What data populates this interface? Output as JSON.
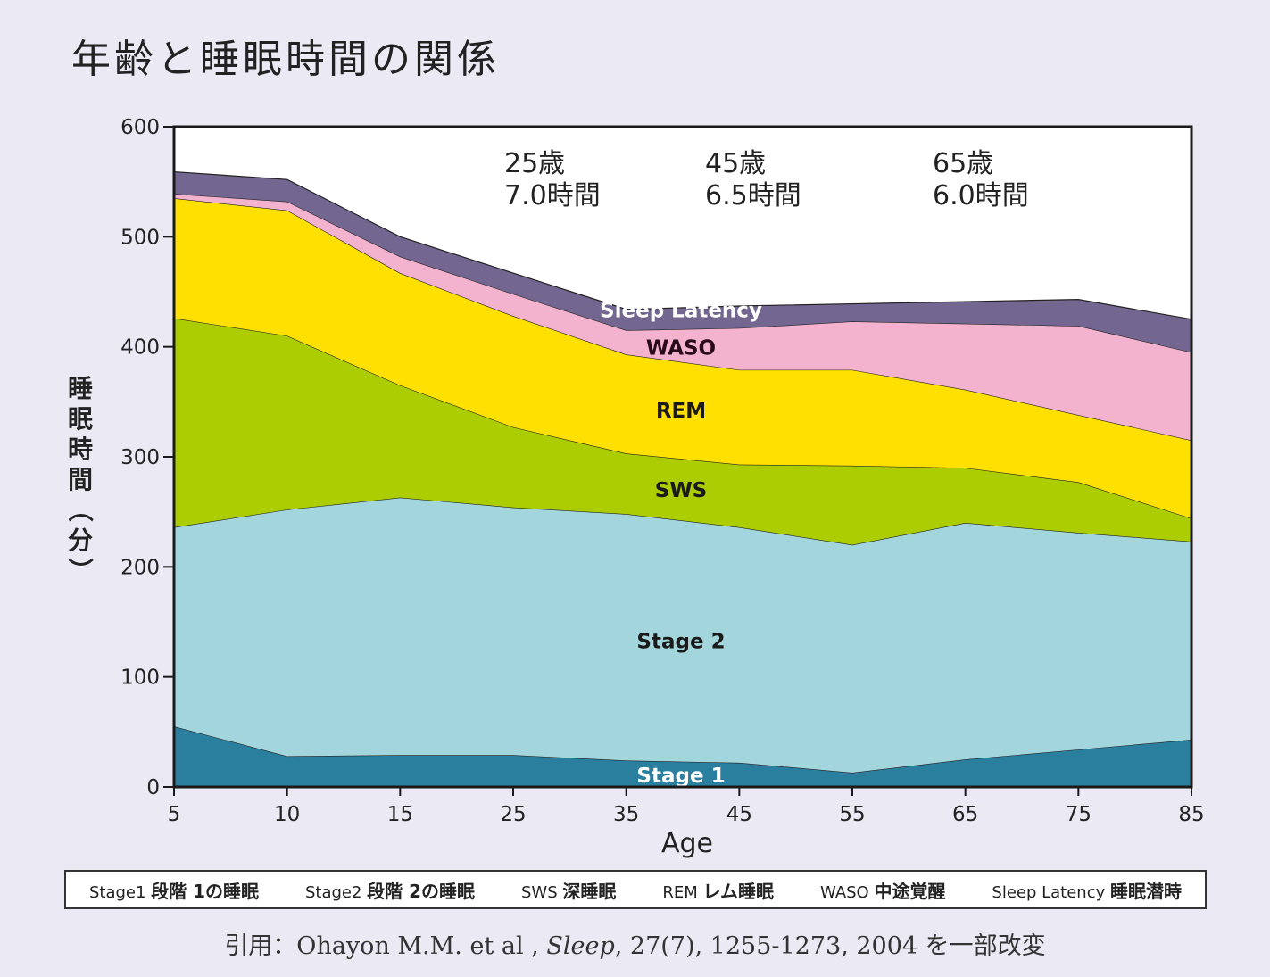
{
  "title": "年齢と睡眠時間の関係",
  "chart_data": {
    "type": "area",
    "stacked": true,
    "x": [
      5,
      10,
      15,
      25,
      35,
      45,
      55,
      65,
      75,
      85
    ],
    "ylabel": "睡眠時間（分）",
    "xlabel": "Age",
    "ylim": [
      0,
      600
    ],
    "yticks": [
      0,
      100,
      200,
      300,
      400,
      500,
      600
    ],
    "series": [
      {
        "key": "stage1",
        "name": "Stage 1",
        "color": "#2a7f9f",
        "label_color": "#ffffff",
        "values": [
          55,
          28,
          29,
          29,
          24,
          22,
          13,
          25,
          34,
          43
        ]
      },
      {
        "key": "stage2",
        "name": "Stage 2",
        "color": "#a2d6dc",
        "label_color": "#1a1a1a",
        "values": [
          181,
          224,
          234,
          225,
          224,
          214,
          207,
          215,
          197,
          180
        ]
      },
      {
        "key": "sws",
        "name": "SWS",
        "color": "#abcd02",
        "label_color": "#1a1a1a",
        "values": [
          190,
          158,
          102,
          73,
          55,
          57,
          72,
          50,
          46,
          21
        ]
      },
      {
        "key": "rem",
        "name": "REM",
        "color": "#ffe000",
        "label_color": "#1a1a1a",
        "values": [
          109,
          114,
          102,
          101,
          90,
          86,
          87,
          71,
          61,
          71
        ]
      },
      {
        "key": "waso",
        "name": "WASO",
        "color": "#f3b3cf",
        "label_color": "#2a0a1a",
        "values": [
          4,
          8,
          15,
          20,
          22,
          38,
          44,
          60,
          81,
          80
        ]
      },
      {
        "key": "latency",
        "name": "Sleep Latency",
        "color": "#736690",
        "label_color": "#ffffff",
        "values": [
          20,
          20,
          18,
          19,
          19,
          20,
          16,
          20,
          24,
          30
        ]
      }
    ],
    "annotations": [
      {
        "age": "25歳",
        "hours": "7.0時間"
      },
      {
        "age": "45歳",
        "hours": "6.5時間"
      },
      {
        "age": "65歳",
        "hours": "6.0時間"
      }
    ]
  },
  "legend": [
    {
      "code": "Stage1",
      "jp": "段階 1の睡眠"
    },
    {
      "code": "Stage2",
      "jp": "段階 2の睡眠"
    },
    {
      "code": "SWS",
      "jp": "深睡眠"
    },
    {
      "code": "REM",
      "jp": "レム睡眠"
    },
    {
      "code": "WASO",
      "jp": "中途覚醒"
    },
    {
      "code": "Sleep Latency",
      "jp": "睡眠潜時"
    }
  ],
  "citation": {
    "prefix": "引用：Ohayon M.M. et al ,",
    "journal": "Sleep",
    "suffix": ", 27(7), 1255-1273, 2004 を一部改変"
  }
}
